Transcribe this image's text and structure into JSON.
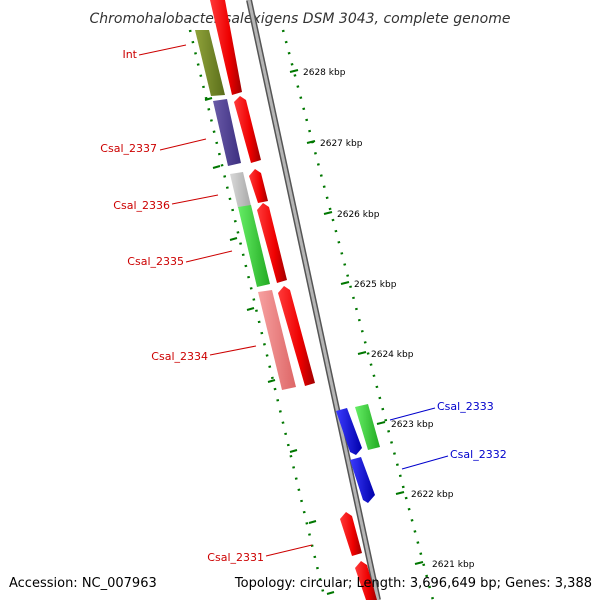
{
  "title": "Chromohalobacter salexigens DSM 3043, complete genome",
  "accession_text": "Accession: NC_007963",
  "topology_text": "Topology: circular; Length: 3,696,649 bp; Genes: 3,388",
  "colors": {
    "backbone": "#999999",
    "backbone_edge": "#555555",
    "tick": "#007700",
    "label_red": "#cc0000",
    "label_blue": "#0000cc"
  },
  "kbp_ticks": [
    {
      "label": "2628 kbp"
    },
    {
      "label": "2627 kbp"
    },
    {
      "label": "2626 kbp"
    },
    {
      "label": "2625 kbp"
    },
    {
      "label": "2624 kbp"
    },
    {
      "label": "2623 kbp"
    },
    {
      "label": "2622 kbp"
    },
    {
      "label": "2621 kbp"
    }
  ],
  "gene_labels": [
    {
      "name": "Int",
      "color": "#cc0000"
    },
    {
      "name": "Csal_2337",
      "color": "#cc0000"
    },
    {
      "name": "Csal_2336",
      "color": "#cc0000"
    },
    {
      "name": "Csal_2335",
      "color": "#cc0000"
    },
    {
      "name": "Csal_2334",
      "color": "#cc0000"
    },
    {
      "name": "Csal_2333",
      "color": "#0000cc"
    },
    {
      "name": "Csal_2332",
      "color": "#0000cc"
    },
    {
      "name": "Csal_2331",
      "color": "#cc0000"
    }
  ]
}
